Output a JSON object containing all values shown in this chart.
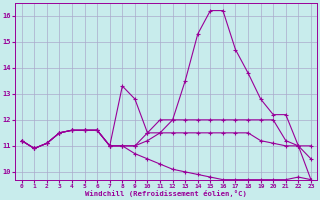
{
  "xlabel": "Windchill (Refroidissement éolien,°C)",
  "background_color": "#c8ecec",
  "line_color": "#990099",
  "grid_color": "#aaaacc",
  "xlim": [
    -0.5,
    23.5
  ],
  "ylim": [
    9.7,
    16.5
  ],
  "xticks": [
    0,
    1,
    2,
    3,
    4,
    5,
    6,
    7,
    8,
    9,
    10,
    11,
    12,
    13,
    14,
    15,
    16,
    17,
    18,
    19,
    20,
    21,
    22,
    23
  ],
  "yticks": [
    10,
    11,
    12,
    13,
    14,
    15,
    16
  ],
  "lines": [
    {
      "x": [
        0,
        1,
        2,
        3,
        4,
        5,
        6,
        7,
        8,
        9,
        10,
        11,
        12,
        13,
        14,
        15,
        16,
        17,
        18,
        19,
        20,
        21,
        22,
        23
      ],
      "y": [
        11.2,
        10.9,
        11.1,
        11.5,
        11.6,
        11.6,
        11.6,
        11.0,
        13.3,
        12.8,
        11.5,
        11.5,
        11.5,
        11.5,
        11.5,
        11.5,
        11.5,
        11.5,
        11.5,
        11.2,
        11.1,
        11.0,
        11.0,
        11.0
      ]
    },
    {
      "x": [
        0,
        1,
        2,
        3,
        4,
        5,
        6,
        7,
        8,
        9,
        10,
        11,
        12,
        13,
        14,
        15,
        16,
        17,
        18,
        19,
        20,
        21,
        22,
        23
      ],
      "y": [
        11.2,
        10.9,
        11.1,
        11.5,
        11.6,
        11.6,
        11.6,
        11.0,
        11.0,
        11.0,
        11.2,
        11.5,
        12.0,
        13.5,
        15.3,
        16.2,
        16.2,
        14.7,
        13.8,
        12.8,
        12.2,
        12.2,
        11.0,
        10.5
      ]
    },
    {
      "x": [
        0,
        1,
        2,
        3,
        4,
        5,
        6,
        7,
        8,
        9,
        10,
        11,
        12,
        13,
        14,
        15,
        16,
        17,
        18,
        19,
        20,
        21,
        22,
        23
      ],
      "y": [
        11.2,
        10.9,
        11.1,
        11.5,
        11.6,
        11.6,
        11.6,
        11.0,
        11.0,
        11.0,
        11.5,
        12.0,
        12.0,
        12.0,
        12.0,
        12.0,
        12.0,
        12.0,
        12.0,
        12.0,
        12.0,
        11.2,
        11.0,
        9.7
      ]
    },
    {
      "x": [
        0,
        1,
        2,
        3,
        4,
        5,
        6,
        7,
        8,
        9,
        10,
        11,
        12,
        13,
        14,
        15,
        16,
        17,
        18,
        19,
        20,
        21,
        22,
        23
      ],
      "y": [
        11.2,
        10.9,
        11.1,
        11.5,
        11.6,
        11.6,
        11.6,
        11.0,
        11.0,
        10.7,
        10.5,
        10.3,
        10.1,
        10.0,
        9.9,
        9.8,
        9.7,
        9.7,
        9.7,
        9.7,
        9.7,
        9.7,
        9.8,
        9.7
      ]
    }
  ]
}
